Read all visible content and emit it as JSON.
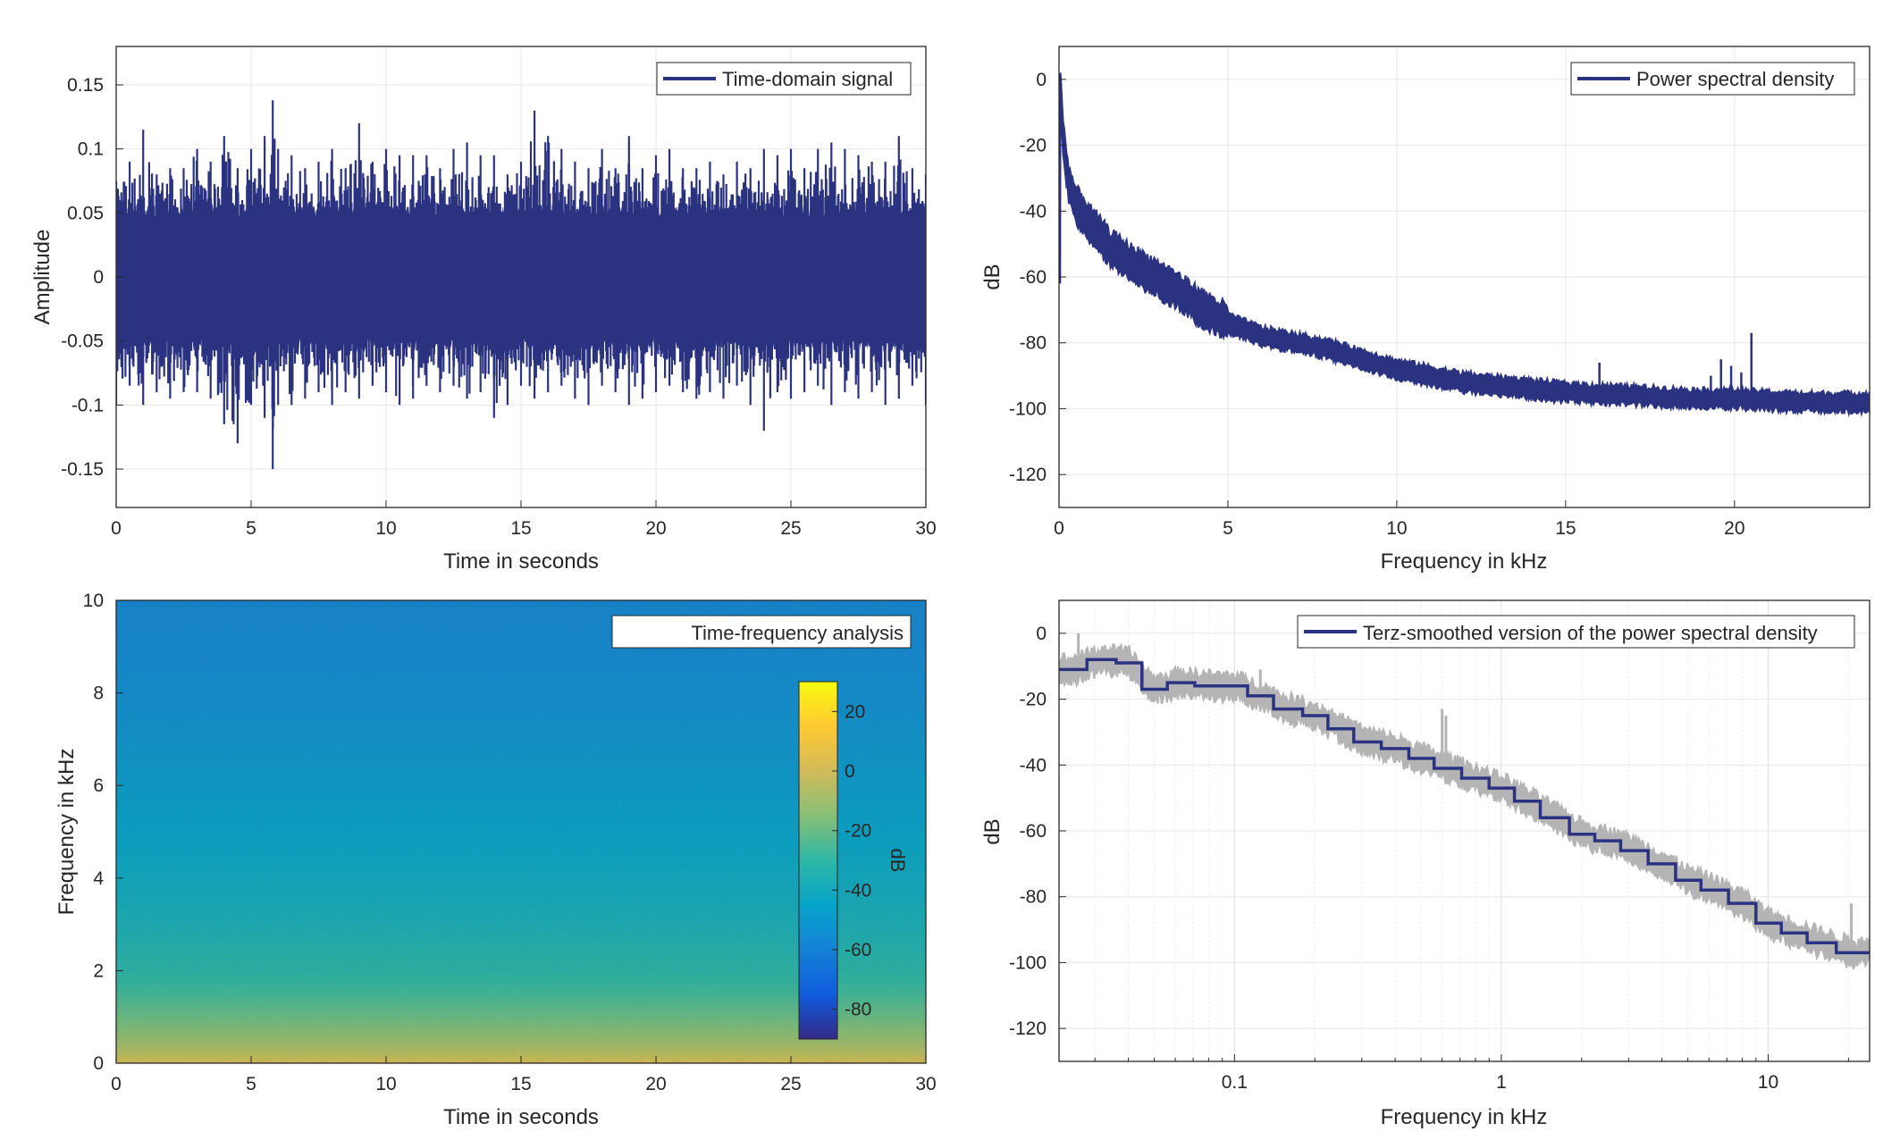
{
  "chart_data": [
    {
      "type": "line",
      "xlabel": "Time in seconds",
      "ylabel": "Amplitude",
      "xlim": [
        0,
        30
      ],
      "ylim": [
        -0.18,
        0.18
      ],
      "xticks": [
        0,
        5,
        10,
        15,
        20,
        25,
        30
      ],
      "xtick_labels": [
        "0",
        "5",
        "10",
        "15",
        "20",
        "25",
        "30"
      ],
      "yticks": [
        -0.15,
        -0.1,
        -0.05,
        0,
        0.05,
        0.1,
        0.15
      ],
      "ytick_labels": [
        "-0.15",
        "-0.1",
        "-0.05",
        "0",
        "0.05",
        "0.1",
        "0.15"
      ],
      "grid": true,
      "legend_position": "top-right",
      "series": [
        {
          "name": "Time-domain signal",
          "color": "#2b3381",
          "envelope": {
            "x": [
              0,
              0.5,
              1.0,
              1.5,
              2.0,
              2.5,
              3.0,
              3.5,
              4.0,
              4.5,
              5.0,
              5.5,
              5.8,
              6.0,
              6.5,
              7.0,
              7.5,
              8.0,
              8.5,
              9.0,
              9.5,
              10.0,
              10.5,
              11.0,
              11.5,
              12.0,
              12.5,
              13.0,
              13.5,
              14.0,
              14.5,
              15.0,
              15.5,
              16.0,
              16.5,
              17.0,
              17.5,
              18.0,
              18.5,
              19.0,
              19.5,
              20.0,
              20.5,
              21.0,
              21.5,
              22.0,
              22.5,
              23.0,
              23.5,
              24.0,
              24.5,
              25.0,
              25.5,
              26.0,
              26.5,
              27.0,
              27.5,
              28.0,
              28.5,
              29.0,
              29.5,
              30.0
            ],
            "max": [
              0.075,
              0.09,
              0.115,
              0.08,
              0.085,
              0.085,
              0.1,
              0.09,
              0.11,
              0.085,
              0.1,
              0.11,
              0.138,
              0.1,
              0.095,
              0.085,
              0.09,
              0.1,
              0.085,
              0.12,
              0.09,
              0.1,
              0.095,
              0.095,
              0.095,
              0.085,
              0.1,
              0.105,
              0.095,
              0.095,
              0.08,
              0.09,
              0.13,
              0.11,
              0.1,
              0.09,
              0.085,
              0.1,
              0.085,
              0.11,
              0.085,
              0.095,
              0.1,
              0.085,
              0.085,
              0.09,
              0.08,
              0.09,
              0.085,
              0.1,
              0.095,
              0.1,
              0.085,
              0.1,
              0.105,
              0.1,
              0.095,
              0.09,
              0.09,
              0.11,
              0.085,
              0.08
            ],
            "min": [
              -0.1,
              -0.085,
              -0.1,
              -0.09,
              -0.095,
              -0.09,
              -0.09,
              -0.095,
              -0.115,
              -0.13,
              -0.1,
              -0.11,
              -0.15,
              -0.1,
              -0.1,
              -0.095,
              -0.09,
              -0.1,
              -0.09,
              -0.095,
              -0.085,
              -0.09,
              -0.1,
              -0.095,
              -0.085,
              -0.09,
              -0.085,
              -0.095,
              -0.09,
              -0.11,
              -0.1,
              -0.085,
              -0.095,
              -0.09,
              -0.085,
              -0.095,
              -0.1,
              -0.085,
              -0.09,
              -0.1,
              -0.095,
              -0.09,
              -0.085,
              -0.09,
              -0.095,
              -0.09,
              -0.095,
              -0.085,
              -0.1,
              -0.12,
              -0.09,
              -0.095,
              -0.09,
              -0.085,
              -0.1,
              -0.09,
              -0.095,
              -0.09,
              -0.1,
              -0.095,
              -0.085,
              -0.1
            ]
          }
        }
      ]
    },
    {
      "type": "line",
      "xlabel": "Frequency in kHz",
      "ylabel": "dB",
      "xlim": [
        0,
        24
      ],
      "ylim": [
        -130,
        10
      ],
      "xticks": [
        0,
        5,
        10,
        15,
        20
      ],
      "xtick_labels": [
        "0",
        "5",
        "10",
        "15",
        "20"
      ],
      "yticks": [
        -120,
        -100,
        -80,
        -60,
        -40,
        -20,
        0
      ],
      "ytick_labels": [
        "-120",
        "-100",
        "-80",
        "-60",
        "-40",
        "-20",
        "0"
      ],
      "grid": true,
      "legend_position": "top-right",
      "series": [
        {
          "name": "Power spectral density",
          "color": "#2b3381",
          "center": {
            "x": [
              0.05,
              0.1,
              0.2,
              0.3,
              0.5,
              0.8,
              1.0,
              1.5,
              2.0,
              2.5,
              3.0,
              3.5,
              4.0,
              4.5,
              5.0,
              6.0,
              7.0,
              8.0,
              9.0,
              10.0,
              11.0,
              12.0,
              13.0,
              14.0,
              15.0,
              16.0,
              17.0,
              18.0,
              19.0,
              20.0,
              21.0,
              22.0,
              23.0,
              24.0
            ],
            "db": [
              -5,
              -15,
              -25,
              -32,
              -38,
              -42,
              -45,
              -51,
              -55,
              -58,
              -61,
              -64,
              -68,
              -71,
              -74,
              -78,
              -80,
              -82,
              -85,
              -88,
              -90,
              -92,
              -93,
              -94,
              -95,
              -95.5,
              -96,
              -96.5,
              -97,
              -97,
              -97.5,
              -98,
              -98,
              -98
            ]
          },
          "band_half_width_db": 3,
          "spikes": [
            {
              "x": 16.0,
              "db": -86
            },
            {
              "x": 19.3,
              "db": -90
            },
            {
              "x": 19.6,
              "db": -85
            },
            {
              "x": 19.9,
              "db": -87
            },
            {
              "x": 20.2,
              "db": -89
            },
            {
              "x": 20.5,
              "db": -77
            }
          ]
        }
      ]
    },
    {
      "type": "heatmap",
      "title": "Time-frequency analysis",
      "xlabel": "Time in seconds",
      "ylabel": "Frequency in kHz",
      "xlim": [
        0,
        30
      ],
      "ylim": [
        0,
        10
      ],
      "xticks": [
        0,
        5,
        10,
        15,
        20,
        25,
        30
      ],
      "xtick_labels": [
        "0",
        "5",
        "10",
        "15",
        "20",
        "25",
        "30"
      ],
      "yticks": [
        0,
        2,
        4,
        6,
        8,
        10
      ],
      "ytick_labels": [
        "0",
        "2",
        "4",
        "6",
        "8",
        "10"
      ],
      "colorbar": {
        "label": "dB",
        "limits": [
          -90,
          30
        ],
        "ticks": [
          20,
          0,
          -20,
          -40,
          -60,
          -80
        ],
        "tick_labels": [
          "20",
          "0",
          "-20",
          "-40",
          "-60",
          "-80"
        ],
        "colormap": [
          "#352a87",
          "#0f5cdd",
          "#1481d6",
          "#06a4ca",
          "#2eb7a4",
          "#87bf77",
          "#d1bb59",
          "#fec832",
          "#f9fb0e"
        ]
      },
      "level_vs_frequency": {
        "freq_khz": [
          0,
          0.2,
          0.5,
          1.0,
          1.5,
          2.0,
          3.0,
          4.0,
          5.0,
          6.0,
          7.0,
          8.0,
          9.0,
          10.0
        ],
        "db": [
          2,
          -5,
          -12,
          -20,
          -27,
          -32,
          -38,
          -42,
          -46,
          -49,
          -52,
          -55,
          -57,
          -58
        ]
      }
    },
    {
      "type": "line",
      "xlabel": "Frequency in kHz",
      "ylabel": "dB",
      "x_scale": "log",
      "xlim": [
        0.022,
        24
      ],
      "ylim": [
        -130,
        10
      ],
      "xticks": [
        0.1,
        1,
        10
      ],
      "xtick_labels": [
        "0.1",
        "1",
        "10"
      ],
      "yticks": [
        -120,
        -100,
        -80,
        -60,
        -40,
        -20,
        0
      ],
      "ytick_labels": [
        "-120",
        "-100",
        "-80",
        "-60",
        "-40",
        "-20",
        "0"
      ],
      "grid": true,
      "legend_position": "top-right",
      "series": [
        {
          "name": "Terz-smoothed version of the power spectral density",
          "color": "#2b3381",
          "steps": [
            {
              "x0": 0.022,
              "x1": 0.028,
              "db": -11
            },
            {
              "x0": 0.028,
              "x1": 0.036,
              "db": -8
            },
            {
              "x0": 0.036,
              "x1": 0.045,
              "db": -9
            },
            {
              "x0": 0.045,
              "x1": 0.056,
              "db": -17
            },
            {
              "x0": 0.056,
              "x1": 0.071,
              "db": -15
            },
            {
              "x0": 0.071,
              "x1": 0.09,
              "db": -16
            },
            {
              "x0": 0.09,
              "x1": 0.112,
              "db": -16
            },
            {
              "x0": 0.112,
              "x1": 0.14,
              "db": -19
            },
            {
              "x0": 0.14,
              "x1": 0.18,
              "db": -23
            },
            {
              "x0": 0.18,
              "x1": 0.224,
              "db": -25
            },
            {
              "x0": 0.224,
              "x1": 0.28,
              "db": -29
            },
            {
              "x0": 0.28,
              "x1": 0.355,
              "db": -33
            },
            {
              "x0": 0.355,
              "x1": 0.45,
              "db": -35
            },
            {
              "x0": 0.45,
              "x1": 0.56,
              "db": -38
            },
            {
              "x0": 0.56,
              "x1": 0.71,
              "db": -41
            },
            {
              "x0": 0.71,
              "x1": 0.9,
              "db": -44
            },
            {
              "x0": 0.9,
              "x1": 1.12,
              "db": -47
            },
            {
              "x0": 1.12,
              "x1": 1.4,
              "db": -51
            },
            {
              "x0": 1.4,
              "x1": 1.8,
              "db": -56
            },
            {
              "x0": 1.8,
              "x1": 2.24,
              "db": -61
            },
            {
              "x0": 2.24,
              "x1": 2.8,
              "db": -63
            },
            {
              "x0": 2.8,
              "x1": 3.55,
              "db": -66
            },
            {
              "x0": 3.55,
              "x1": 4.5,
              "db": -70
            },
            {
              "x0": 4.5,
              "x1": 5.6,
              "db": -75
            },
            {
              "x0": 5.6,
              "x1": 7.1,
              "db": -78
            },
            {
              "x0": 7.1,
              "x1": 9.0,
              "db": -82
            },
            {
              "x0": 9.0,
              "x1": 11.2,
              "db": -88
            },
            {
              "x0": 11.2,
              "x1": 14.0,
              "db": -91
            },
            {
              "x0": 14.0,
              "x1": 18.0,
              "db": -94
            },
            {
              "x0": 18.0,
              "x1": 24.0,
              "db": -97
            }
          ]
        },
        {
          "name": "",
          "color": "#b4b4b4",
          "raw_psd_band_half_width_db": 4
        }
      ]
    }
  ]
}
